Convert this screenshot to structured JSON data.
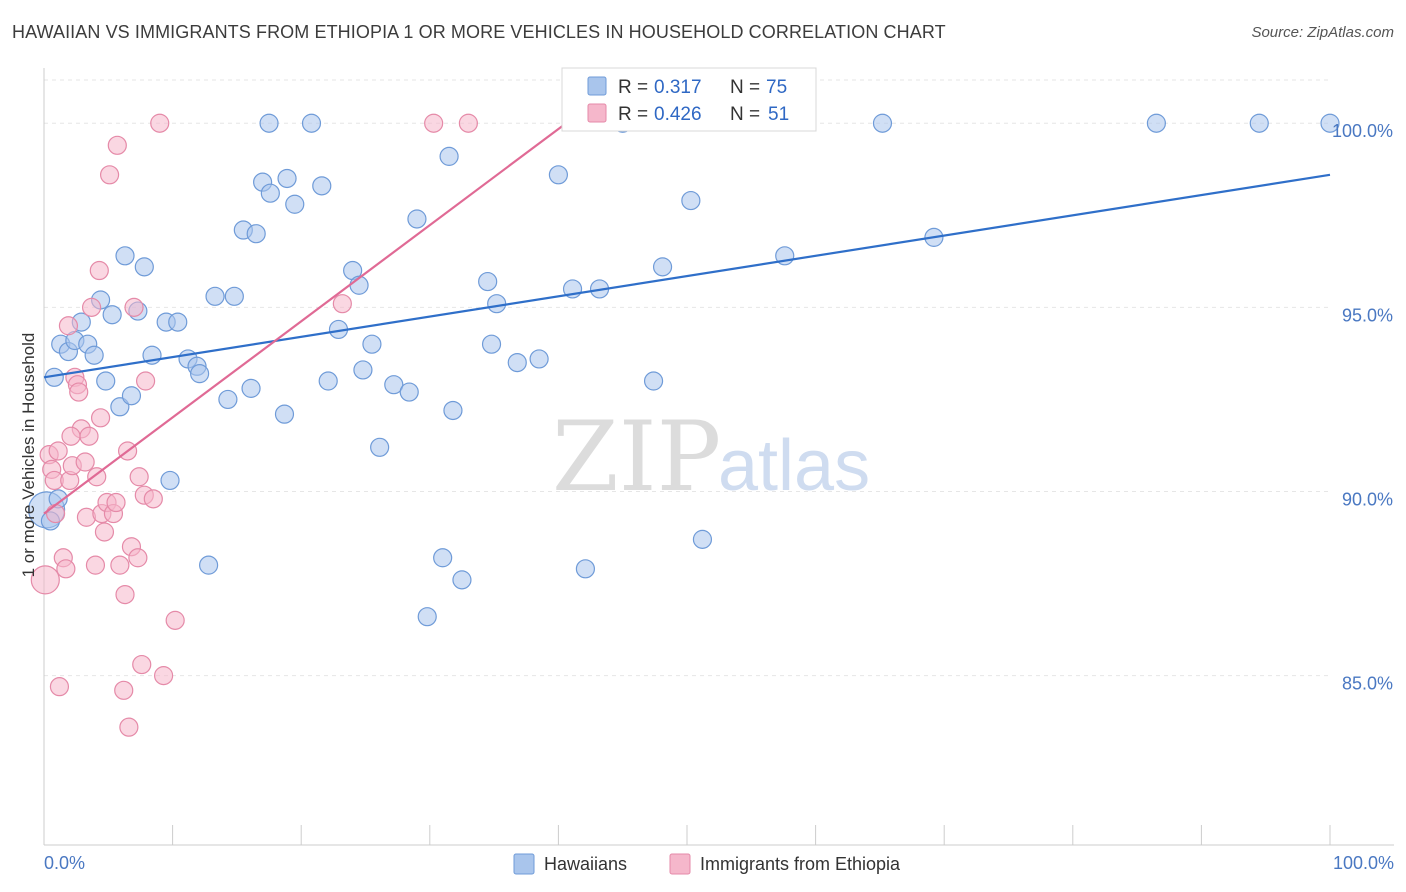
{
  "chart_data": {
    "type": "scatter",
    "title": "HAWAIIAN VS IMMIGRANTS FROM ETHIOPIA 1 OR MORE VEHICLES IN HOUSEHOLD CORRELATION CHART",
    "source": "Source: ZipAtlas.com",
    "xlabel": "",
    "ylabel": "1 or more Vehicles in Household",
    "xlim": [
      0,
      100
    ],
    "ylim": [
      80.4,
      101.5
    ],
    "x_tick_labels": [
      "0.0%",
      "100.0%"
    ],
    "y_ticks": [
      {
        "value": 100,
        "label": "100.0%"
      },
      {
        "value": 95,
        "label": "95.0%"
      },
      {
        "value": 90,
        "label": "90.0%"
      },
      {
        "value": 85,
        "label": "85.0%"
      }
    ],
    "watermark": {
      "zip": "ZIP",
      "atlas": "atlas"
    },
    "legend": {
      "r_label": "R =",
      "n_label": "N =",
      "entries": [
        {
          "r": "0.317",
          "n": "75"
        },
        {
          "r": "0.426",
          "n": "51"
        }
      ]
    },
    "series": [
      {
        "name": "Hawaiians",
        "color": "#a9c5ec",
        "stroke": "#6f9bd8",
        "line_color": "#2f6fc9",
        "trend": {
          "x": [
            0,
            100
          ],
          "y": [
            93.1,
            98.6
          ]
        },
        "points": [
          [
            0.2,
            89.5,
            18
          ],
          [
            0.8,
            93.1,
            9
          ],
          [
            1.3,
            94.0,
            9
          ],
          [
            1.9,
            93.8,
            9
          ],
          [
            2.4,
            94.1,
            9
          ],
          [
            2.9,
            94.6,
            9
          ],
          [
            3.4,
            94.0,
            9
          ],
          [
            3.9,
            93.7,
            9
          ],
          [
            4.4,
            95.2,
            9
          ],
          [
            4.8,
            93.0,
            9
          ],
          [
            5.3,
            94.8,
            9
          ],
          [
            5.9,
            92.3,
            9
          ],
          [
            6.3,
            96.4,
            9
          ],
          [
            6.8,
            92.6,
            9
          ],
          [
            7.3,
            94.9,
            9
          ],
          [
            7.8,
            96.1,
            9
          ],
          [
            8.4,
            93.7,
            9
          ],
          [
            9.5,
            94.6,
            9
          ],
          [
            9.8,
            90.3,
            9
          ],
          [
            10.4,
            94.6,
            9
          ],
          [
            11.2,
            93.6,
            9
          ],
          [
            11.9,
            93.4,
            9
          ],
          [
            12.1,
            93.2,
            9
          ],
          [
            12.8,
            88.0,
            9
          ],
          [
            13.3,
            95.3,
            9
          ],
          [
            14.3,
            92.5,
            9
          ],
          [
            14.8,
            95.3,
            9
          ],
          [
            15.5,
            97.1,
            9
          ],
          [
            16.1,
            92.8,
            9
          ],
          [
            16.5,
            97.0,
            9
          ],
          [
            17.0,
            98.4,
            9
          ],
          [
            17.5,
            100.0,
            9
          ],
          [
            17.6,
            98.1,
            9
          ],
          [
            18.7,
            92.1,
            9
          ],
          [
            18.9,
            98.5,
            9
          ],
          [
            19.5,
            97.8,
            9
          ],
          [
            20.8,
            100.0,
            9
          ],
          [
            21.6,
            98.3,
            9
          ],
          [
            22.1,
            93.0,
            9
          ],
          [
            22.9,
            94.4,
            9
          ],
          [
            24.0,
            96.0,
            9
          ],
          [
            24.5,
            95.6,
            9
          ],
          [
            24.8,
            93.3,
            9
          ],
          [
            25.5,
            94.0,
            9
          ],
          [
            26.1,
            91.2,
            9
          ],
          [
            27.2,
            92.9,
            9
          ],
          [
            28.4,
            92.7,
            9
          ],
          [
            29.0,
            97.4,
            9
          ],
          [
            29.8,
            86.6,
            9
          ],
          [
            31.0,
            88.2,
            9
          ],
          [
            31.5,
            99.1,
            9
          ],
          [
            31.8,
            92.2,
            9
          ],
          [
            32.5,
            87.6,
            9
          ],
          [
            34.5,
            95.7,
            9
          ],
          [
            34.8,
            94.0,
            9
          ],
          [
            35.2,
            95.1,
            9
          ],
          [
            36.8,
            93.5,
            9
          ],
          [
            38.5,
            93.6,
            9
          ],
          [
            40.0,
            98.6,
            9
          ],
          [
            41.1,
            95.5,
            9
          ],
          [
            42.1,
            87.9,
            9
          ],
          [
            43.2,
            95.5,
            9
          ],
          [
            45.0,
            100.0,
            9
          ],
          [
            47.4,
            93.0,
            9
          ],
          [
            48.1,
            96.1,
            9
          ],
          [
            50.3,
            97.9,
            9
          ],
          [
            51.2,
            88.7,
            9
          ],
          [
            57.6,
            96.4,
            9
          ],
          [
            65.2,
            100.0,
            9
          ],
          [
            69.2,
            96.9,
            9
          ],
          [
            86.5,
            100.0,
            9
          ],
          [
            94.5,
            100.0,
            9
          ],
          [
            100.0,
            100.0,
            9
          ],
          [
            0.5,
            89.2,
            9
          ],
          [
            1.1,
            89.8,
            9
          ]
        ]
      },
      {
        "name": "Immigrants from Ethiopia",
        "color": "#f5b7cb",
        "stroke": "#e58aa8",
        "line_color": "#e06a95",
        "trend": {
          "x": [
            0,
            40.6
          ],
          "y": [
            89.4,
            100.0
          ]
        },
        "points": [
          [
            0.1,
            87.6,
            14
          ],
          [
            0.4,
            91.0,
            9
          ],
          [
            0.6,
            90.6,
            9
          ],
          [
            0.8,
            90.3,
            9
          ],
          [
            0.9,
            89.4,
            9
          ],
          [
            1.1,
            91.1,
            9
          ],
          [
            1.2,
            84.7,
            9
          ],
          [
            1.5,
            88.2,
            9
          ],
          [
            1.7,
            87.9,
            9
          ],
          [
            1.9,
            94.5,
            9
          ],
          [
            2.0,
            90.3,
            9
          ],
          [
            2.2,
            90.7,
            9
          ],
          [
            2.4,
            93.1,
            9
          ],
          [
            2.6,
            92.9,
            9
          ],
          [
            2.7,
            92.7,
            9
          ],
          [
            2.9,
            91.7,
            9
          ],
          [
            3.2,
            90.8,
            9
          ],
          [
            3.3,
            89.3,
            9
          ],
          [
            3.5,
            91.5,
            9
          ],
          [
            3.7,
            95.0,
            9
          ],
          [
            4.0,
            88.0,
            9
          ],
          [
            4.1,
            90.4,
            9
          ],
          [
            4.3,
            96.0,
            9
          ],
          [
            4.4,
            92.0,
            9
          ],
          [
            4.5,
            89.4,
            9
          ],
          [
            4.7,
            88.9,
            9
          ],
          [
            4.9,
            89.7,
            9
          ],
          [
            5.1,
            98.6,
            9
          ],
          [
            5.4,
            89.4,
            9
          ],
          [
            5.6,
            89.7,
            9
          ],
          [
            5.7,
            99.4,
            9
          ],
          [
            5.9,
            88.0,
            9
          ],
          [
            6.2,
            84.6,
            9
          ],
          [
            6.3,
            87.2,
            9
          ],
          [
            6.5,
            91.1,
            9
          ],
          [
            6.6,
            83.6,
            9
          ],
          [
            6.8,
            88.5,
            9
          ],
          [
            7.0,
            95.0,
            9
          ],
          [
            7.3,
            88.2,
            9
          ],
          [
            7.4,
            90.4,
            9
          ],
          [
            7.6,
            85.3,
            9
          ],
          [
            7.8,
            89.9,
            9
          ],
          [
            7.9,
            93.0,
            9
          ],
          [
            8.5,
            89.8,
            9
          ],
          [
            9.0,
            100.0,
            9
          ],
          [
            9.3,
            85.0,
            9
          ],
          [
            10.2,
            86.5,
            9
          ],
          [
            23.2,
            95.1,
            9
          ],
          [
            30.3,
            100.0,
            9
          ],
          [
            33.0,
            100.0,
            9
          ],
          [
            2.1,
            91.5,
            9
          ]
        ]
      }
    ]
  }
}
